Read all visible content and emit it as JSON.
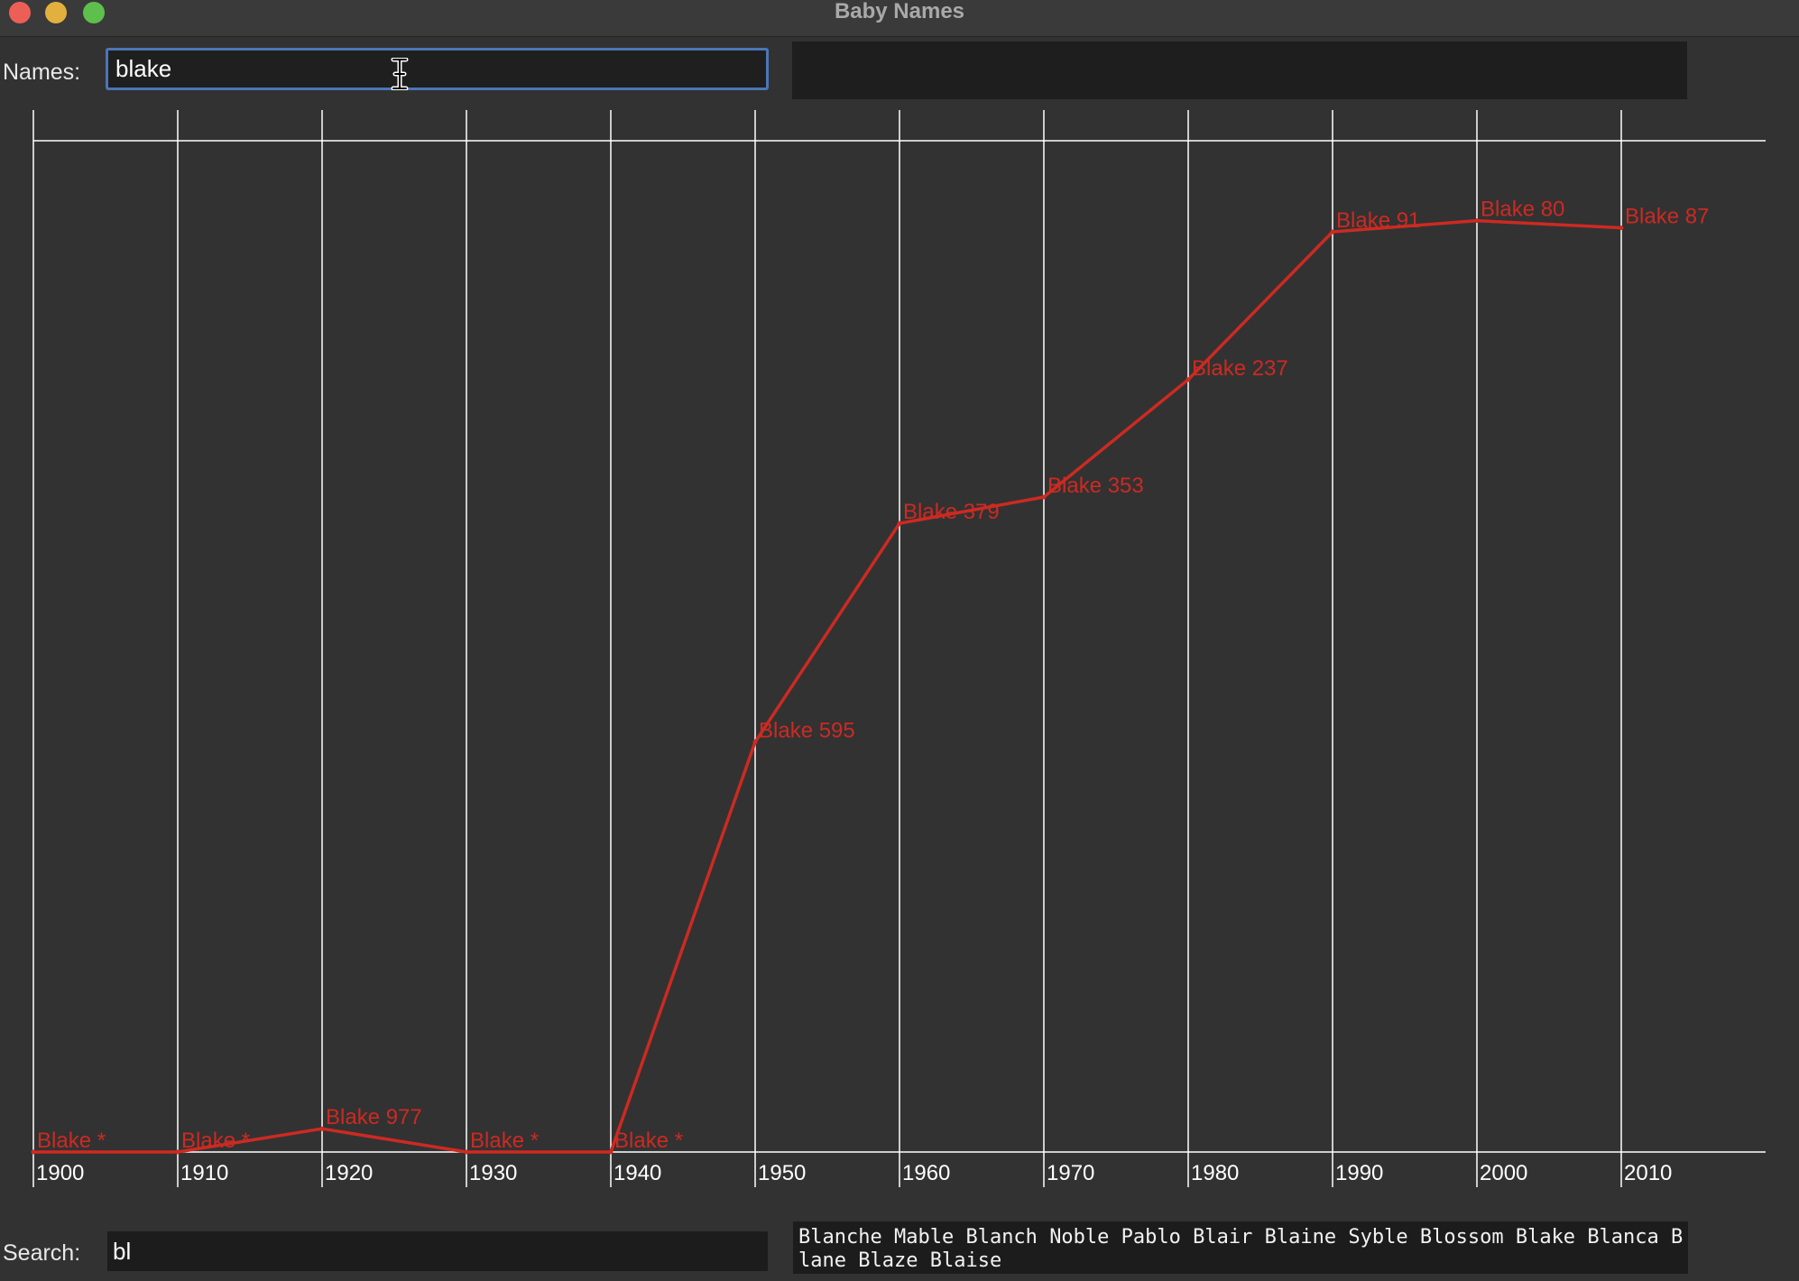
{
  "window": {
    "title": "Baby Names"
  },
  "names": {
    "label": "Names:",
    "value": "blake"
  },
  "search": {
    "label": "Search:",
    "value": "bl"
  },
  "results": {
    "names": [
      "Blanche",
      "Mable",
      "Blanch",
      "Noble",
      "Pablo",
      "Blair",
      "Blaine",
      "Syble",
      "Blossom",
      "Blake",
      "Blanca",
      "Blane",
      "Blaze",
      "Blaise"
    ]
  },
  "colors": {
    "series": "#cc2a22",
    "grid": "#ffffff",
    "background": "#323232",
    "focus_ring": "#4b76b5"
  },
  "chart_data": {
    "type": "line",
    "x": [
      1900,
      1910,
      1920,
      1930,
      1940,
      1950,
      1960,
      1970,
      1980,
      1990,
      2000,
      2010
    ],
    "x_tick_labels": [
      "1900",
      "1910",
      "1920",
      "1930",
      "1940",
      "1950",
      "1960",
      "1970",
      "1980",
      "1990",
      "2000",
      "2010"
    ],
    "series": [
      {
        "name": "Blake",
        "ranks": [
          null,
          null,
          977,
          null,
          null,
          595,
          379,
          353,
          237,
          91,
          80,
          87
        ],
        "point_labels": [
          "Blake *",
          "Blake *",
          "Blake 977",
          "Blake *",
          "Blake *",
          "Blake 595",
          "Blake 379",
          "Blake 353",
          "Blake 237",
          "Blake 91",
          "Blake 80",
          "Blake 87"
        ]
      }
    ],
    "y_scale": {
      "top_rank": 1,
      "bottom_rank": 1000,
      "unranked_at_bottom": true
    },
    "grid": true,
    "legend": "none"
  }
}
